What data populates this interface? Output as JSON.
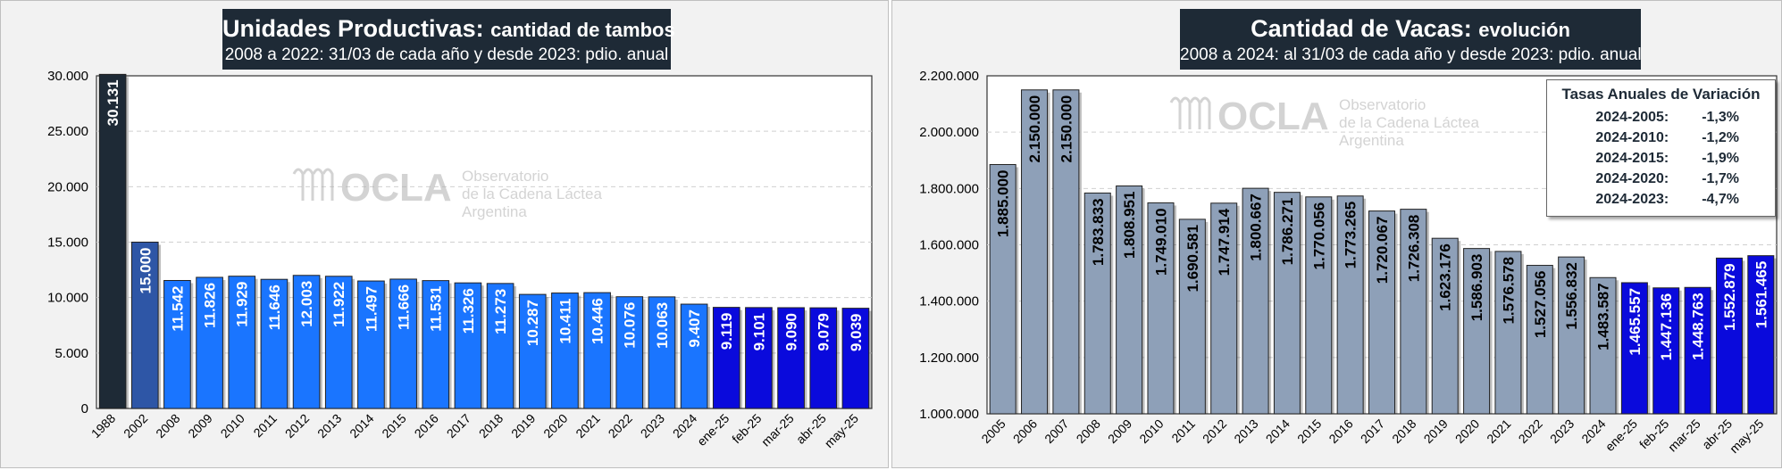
{
  "left": {
    "title_main": "Unidades Productivas:",
    "title_sub": "cantidad de tambos",
    "subtitle": "2008 a 2022: 31/03 de cada año y desde 2023: pdio. anual"
  },
  "right": {
    "title_main": "Cantidad de Vacas:",
    "title_sub": "evolución",
    "subtitle": "2008 a 2024: al 31/03 de cada año y desde 2023: pdio. anual",
    "rates": {
      "title": "Tasas Anuales de Variación",
      "rows": [
        {
          "label": "2024-2005:",
          "value": "-1,3%"
        },
        {
          "label": "2024-2010:",
          "value": "-1,2%"
        },
        {
          "label": "2024-2015:",
          "value": "-1,9%"
        },
        {
          "label": "2024-2020:",
          "value": "-1,7%"
        },
        {
          "label": "2024-2023:",
          "value": "-4,7%"
        }
      ]
    }
  },
  "watermark": {
    "brand": "OCLA",
    "line1": "Observatorio",
    "line2": "de la Cadena Láctea",
    "line3": "Argentina"
  },
  "colors": {
    "dark": "#1e2a36",
    "medium_blue": "#2e56a6",
    "bright_blue": "#1a75ff",
    "deep_blue": "#0a0adc",
    "grey_blue": "#8ea0b8"
  },
  "chart_data": [
    {
      "type": "bar",
      "title": "Unidades Productivas: cantidad de tambos",
      "subtitle": "2008 a 2022: 31/03 de cada año y desde 2023: pdio. anual",
      "categories": [
        "1988",
        "2002",
        "2008",
        "2009",
        "2010",
        "2011",
        "2012",
        "2013",
        "2014",
        "2015",
        "2016",
        "2017",
        "2018",
        "2019",
        "2020",
        "2021",
        "2022",
        "2023",
        "2024",
        "ene-25",
        "feb-25",
        "mar-25",
        "abr-25",
        "may-25"
      ],
      "values": [
        30131,
        15000,
        11542,
        11826,
        11929,
        11646,
        12003,
        11922,
        11497,
        11666,
        11531,
        11326,
        11273,
        10287,
        10411,
        10446,
        10076,
        10063,
        9407,
        9119,
        9101,
        9090,
        9079,
        9039
      ],
      "labels": [
        "30.131",
        "15.000",
        "11.542",
        "11.826",
        "11.929",
        "11.646",
        "12.003",
        "11.922",
        "11.497",
        "11.666",
        "11.531",
        "11.326",
        "11.273",
        "10.287",
        "10.411",
        "10.446",
        "10.076",
        "10.063",
        "9.407",
        "9.119",
        "9.101",
        "9.090",
        "9.079",
        "9.039"
      ],
      "ylim": [
        0,
        30000
      ],
      "yticks": [
        0,
        5000,
        10000,
        15000,
        20000,
        25000,
        30000
      ],
      "ytick_labels": [
        "0",
        "5.000",
        "10.000",
        "15.000",
        "20.000",
        "25.000",
        "30.000"
      ],
      "grid": true
    },
    {
      "type": "bar",
      "title": "Cantidad de Vacas: evolución",
      "subtitle": "2008 a 2024: al 31/03 de cada año y desde 2023: pdio. anual",
      "categories": [
        "2005",
        "2006",
        "2007",
        "2008",
        "2009",
        "2010",
        "2011",
        "2012",
        "2013",
        "2014",
        "2015",
        "2016",
        "2017",
        "2018",
        "2019",
        "2020",
        "2021",
        "2022",
        "2023",
        "2024",
        "ene-25",
        "feb-25",
        "mar-25",
        "abr-25",
        "may-25"
      ],
      "values": [
        1885000,
        2150000,
        2150000,
        1783833,
        1808951,
        1749010,
        1690581,
        1747914,
        1800667,
        1786271,
        1770056,
        1773265,
        1720067,
        1726308,
        1623176,
        1586903,
        1576578,
        1527056,
        1556832,
        1483587,
        1465557,
        1447136,
        1448763,
        1552879,
        1561465
      ],
      "labels": [
        "1.885.000",
        "2.150.000",
        "2.150.000",
        "1.783.833",
        "1.808.951",
        "1.749.010",
        "1.690.581",
        "1.747.914",
        "1.800.667",
        "1.786.271",
        "1.770.056",
        "1.773.265",
        "1.720.067",
        "1.726.308",
        "1.623.176",
        "1.586.903",
        "1.576.578",
        "1.527.056",
        "1.556.832",
        "1.483.587",
        "1.465.557",
        "1.447.136",
        "1.448.763",
        "1.552.879",
        "1.561.465"
      ],
      "ylim": [
        1000000,
        2200000
      ],
      "yticks": [
        1000000,
        1200000,
        1400000,
        1600000,
        1800000,
        2000000,
        2200000
      ],
      "ytick_labels": [
        "1.000.000",
        "1.200.000",
        "1.400.000",
        "1.600.000",
        "1.800.000",
        "2.000.000",
        "2.200.000"
      ],
      "grid": true
    }
  ]
}
